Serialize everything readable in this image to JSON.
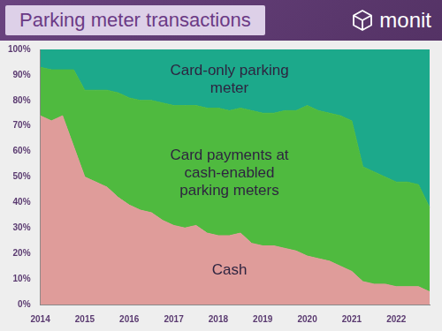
{
  "chart_data": {
    "type": "area",
    "title": "Parking meter transactions",
    "annotations": [
      "monit"
    ],
    "categories": [
      "2014",
      null,
      null,
      null,
      "2015",
      null,
      null,
      null,
      "2016",
      null,
      null,
      null,
      "2017",
      null,
      null,
      null,
      "2018",
      null,
      null,
      null,
      "2019",
      null,
      null,
      null,
      "2020",
      null,
      null,
      null,
      "2021",
      null,
      null,
      null,
      "2022",
      null,
      null,
      null
    ],
    "series": [
      {
        "name": "Cash",
        "color": "#df9c9a",
        "values": [
          74,
          72,
          74,
          62,
          50,
          48,
          46,
          42,
          39,
          37,
          36,
          33,
          31,
          30,
          31,
          28,
          27,
          27,
          28,
          24,
          23,
          23,
          22,
          21,
          19,
          18,
          17,
          15,
          13,
          9,
          8,
          8,
          7,
          7,
          7,
          5
        ]
      },
      {
        "name": "Card payments at cash-enabled parking meters",
        "color": "#4fba3f",
        "values": [
          19,
          20,
          18,
          30,
          34,
          36,
          38,
          41,
          42,
          43,
          44,
          46,
          47,
          48,
          47,
          49,
          50,
          49,
          49,
          52,
          52,
          52,
          54,
          55,
          59,
          58,
          58,
          59,
          59,
          45,
          44,
          42,
          41,
          41,
          40,
          33
        ]
      },
      {
        "name": "Card-only parking meter",
        "color": "#1ca98b",
        "values": [
          7,
          8,
          8,
          8,
          16,
          16,
          16,
          17,
          19,
          20,
          20,
          21,
          22,
          22,
          22,
          23,
          23,
          24,
          23,
          24,
          25,
          25,
          24,
          24,
          22,
          24,
          25,
          26,
          28,
          46,
          48,
          50,
          52,
          52,
          53,
          62
        ]
      }
    ],
    "ylim": [
      0,
      100
    ],
    "yticks": [
      {
        "value": 0,
        "label": "0%"
      },
      {
        "value": 10,
        "label": "10%"
      },
      {
        "value": 20,
        "label": "20%"
      },
      {
        "value": 30,
        "label": "30%"
      },
      {
        "value": 40,
        "label": "40%"
      },
      {
        "value": 50,
        "label": "50%"
      },
      {
        "value": 60,
        "label": "60%"
      },
      {
        "value": 70,
        "label": "70%"
      },
      {
        "value": 80,
        "label": "80%"
      },
      {
        "value": 90,
        "label": "90%"
      },
      {
        "value": 100,
        "label": "100%"
      }
    ],
    "stacked": true,
    "grid": false
  }
}
